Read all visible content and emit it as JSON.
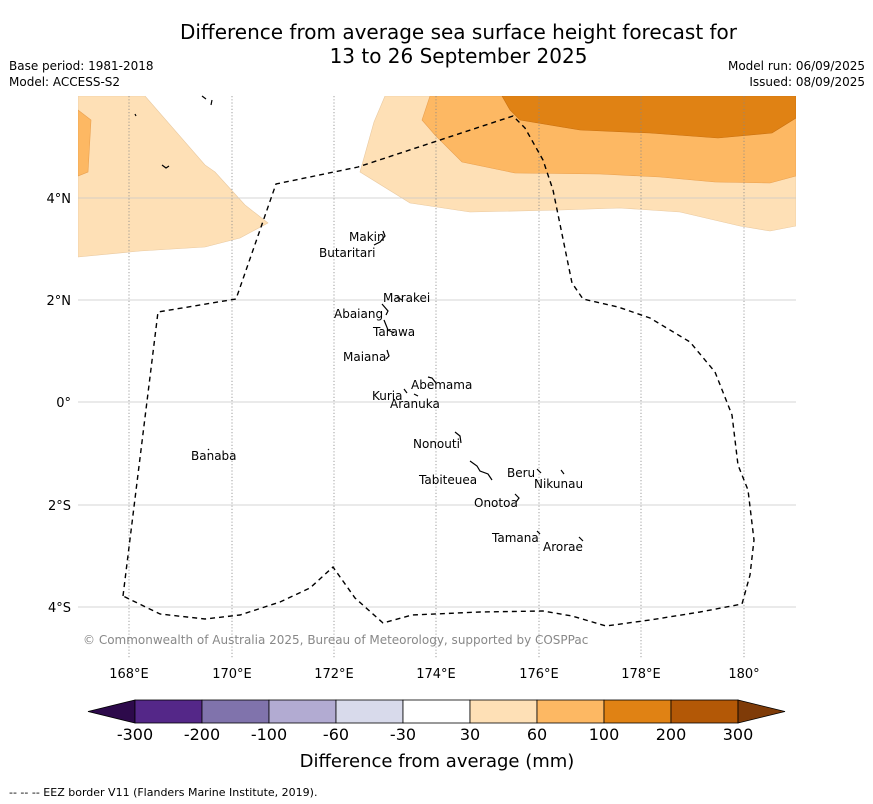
{
  "header": {
    "title_line1": "Difference from average sea surface height forecast for",
    "title_line2": "13 to 26 September 2025",
    "base_period": "Base period: 1981-2018",
    "model": "Model: ACCESS-S2",
    "model_run": "Model run: 06/09/2025",
    "issued": "Issued: 08/09/2025"
  },
  "map": {
    "y_ticks": [
      "4°N",
      "2°N",
      "0°",
      "2°S",
      "4°S"
    ],
    "x_ticks": [
      "168°E",
      "170°E",
      "172°E",
      "174°E",
      "176°E",
      "178°E",
      "180°"
    ],
    "copyright": "© Commonwealth of Australia 2025, Bureau of Meteorology, supported by COSPPac",
    "islands": {
      "makin": "Makin",
      "butaritari": "Butaritari",
      "marakei": "Marakei",
      "abaiang": "Abaiang",
      "tarawa": "Tarawa",
      "maiana": "Maiana",
      "abemama": "Abemama",
      "kuria": "Kuria",
      "aranuka": "Aranuka",
      "banaba": "Banaba",
      "nonouti": "Nonouti",
      "beru": "Beru",
      "nikunau": "Nikunau",
      "tabiteuea": "Tabiteuea",
      "onotoa": "Onotoa",
      "tamana": "Tamana",
      "arorae": "Arorae"
    }
  },
  "colorbar": {
    "ticks": [
      "-300",
      "-200",
      "-100",
      "-60",
      "-30",
      "30",
      "60",
      "100",
      "200",
      "300"
    ],
    "colors": [
      "#2d0a4b",
      "#542788",
      "#8073ac",
      "#b2abd2",
      "#d8daeb",
      "#ffffff",
      "#fee0b6",
      "#fdb863",
      "#e08214",
      "#b35806",
      "#7f3b08"
    ],
    "label": "Difference from average (mm)"
  },
  "footnote": "--  --  -- EEZ border V11 (Flanders Marine Institute, 2019)."
}
